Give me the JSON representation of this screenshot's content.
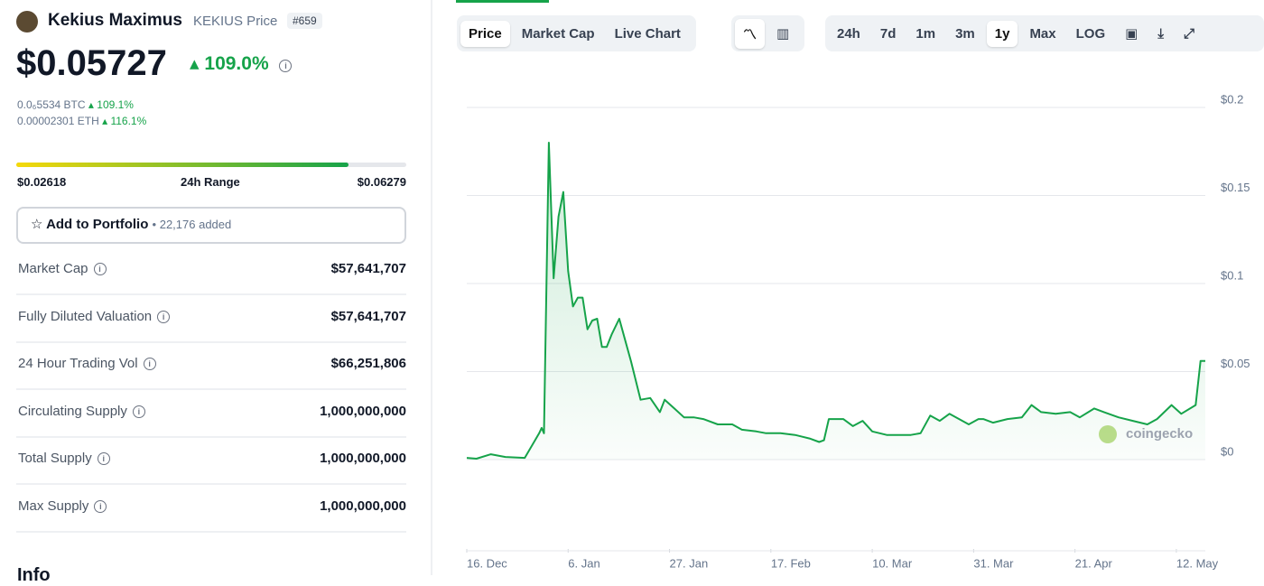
{
  "coin": {
    "name": "Kekius Maximus",
    "symbol_label": "KEKIUS Price",
    "rank": "#659",
    "price": "$0.05727",
    "change": "109.0%",
    "btc": "0.0₆5534 BTC",
    "btc_change": "109.1%",
    "eth": "0.00002301 ETH",
    "eth_change": "116.1%"
  },
  "range": {
    "low": "$0.02618",
    "label": "24h Range",
    "high": "$0.06279"
  },
  "portfolio": {
    "button": "Add to Portfolio",
    "added": "22,176 added"
  },
  "stats": [
    {
      "label": "Market Cap",
      "value": "$57,641,707"
    },
    {
      "label": "Fully Diluted Valuation",
      "value": "$57,641,707"
    },
    {
      "label": "24 Hour Trading Vol",
      "value": "$66,251,806"
    },
    {
      "label": "Circulating Supply",
      "value": "1,000,000,000"
    },
    {
      "label": "Total Supply",
      "value": "1,000,000,000"
    },
    {
      "label": "Max Supply",
      "value": "1,000,000,000"
    }
  ],
  "info_heading": "Info",
  "tabs": [
    "Price",
    "Market Cap",
    "Live Chart"
  ],
  "ranges": [
    "24h",
    "7d",
    "1m",
    "3m",
    "1y",
    "Max",
    "LOG"
  ],
  "chart_data": {
    "type": "line",
    "color": "#16a34a",
    "watermark": "coingecko",
    "grid": true,
    "x": [
      0,
      2,
      5,
      8,
      12,
      15,
      15.5,
      16,
      17,
      18,
      19,
      20,
      21,
      22,
      23,
      24,
      25,
      26,
      27,
      28,
      29,
      30,
      31.6,
      33,
      34,
      36,
      38,
      40,
      41,
      43,
      45,
      47,
      49,
      52,
      55,
      57,
      60,
      62,
      65,
      68,
      71,
      73,
      74,
      75,
      78,
      80,
      82,
      84,
      87,
      89.5,
      92,
      94,
      96,
      98,
      100,
      102,
      104,
      106,
      107,
      109,
      112,
      115,
      117,
      119,
      122,
      125,
      127,
      130,
      132,
      135,
      138,
      141,
      143,
      146,
      148,
      151,
      152,
      153
    ],
    "values": [
      0.001,
      0.0005,
      0.003,
      0.0015,
      0.001,
      0.015,
      0.018,
      0.015,
      0.18,
      0.103,
      0.138,
      0.152,
      0.107,
      0.087,
      0.092,
      0.092,
      0.074,
      0.079,
      0.08,
      0.064,
      0.064,
      0.071,
      0.08,
      0.066,
      0.056,
      0.034,
      0.035,
      0.027,
      0.034,
      0.029,
      0.024,
      0.024,
      0.023,
      0.02,
      0.02,
      0.017,
      0.016,
      0.015,
      0.015,
      0.014,
      0.012,
      0.01,
      0.011,
      0.023,
      0.023,
      0.019,
      0.022,
      0.016,
      0.014,
      0.014,
      0.014,
      0.015,
      0.025,
      0.022,
      0.026,
      0.023,
      0.02,
      0.023,
      0.023,
      0.021,
      0.023,
      0.024,
      0.031,
      0.027,
      0.026,
      0.027,
      0.024,
      0.029,
      0.027,
      0.024,
      0.022,
      0.02,
      0.023,
      0.031,
      0.026,
      0.031,
      0.056,
      0.056
    ],
    "xlim": [
      0,
      153
    ],
    "xticks": [
      {
        "value": 0,
        "label": "16. Dec"
      },
      {
        "value": 21,
        "label": "6. Jan"
      },
      {
        "value": 42,
        "label": "27. Jan"
      },
      {
        "value": 63,
        "label": "17. Feb"
      },
      {
        "value": 84,
        "label": "10. Mar"
      },
      {
        "value": 105,
        "label": "31. Mar"
      },
      {
        "value": 126,
        "label": "21. Apr"
      },
      {
        "value": 147,
        "label": "12. May"
      }
    ],
    "ylim": [
      0,
      0.2
    ],
    "yticks": [
      {
        "value": 0,
        "label": "$0"
      },
      {
        "value": 0.05,
        "label": "$0.05"
      },
      {
        "value": 0.1,
        "label": "$0.1"
      },
      {
        "value": 0.15,
        "label": "$0.15"
      },
      {
        "value": 0.2,
        "label": "$0.2"
      }
    ]
  }
}
